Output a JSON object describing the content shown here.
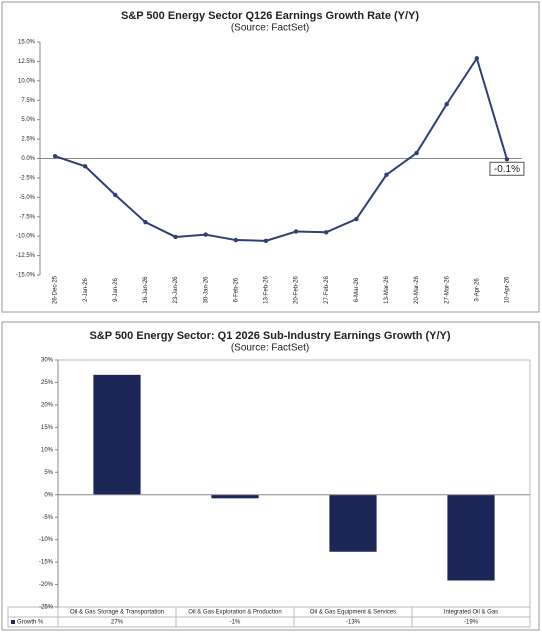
{
  "chart_data": [
    {
      "type": "line",
      "title": "S&P 500 Energy Sector Q126 Earnings Growth Rate (Y/Y)",
      "subtitle": "(Source: FactSet)",
      "categories": [
        "26-Dec-25",
        "2-Jan-26",
        "9-Jan-26",
        "16-Jan-26",
        "23-Jan-26",
        "30-Jan-26",
        "6-Feb-26",
        "13-Feb-26",
        "20-Feb-26",
        "27-Feb-26",
        "6-Mar-26",
        "13-Mar-26",
        "20-Mar-26",
        "27-Mar-26",
        "3-Apr-26",
        "10-Apr-26"
      ],
      "values": [
        0.3,
        -1.0,
        -4.7,
        -8.2,
        -10.1,
        -9.8,
        -10.5,
        -10.6,
        -9.4,
        -9.5,
        -7.8,
        -2.1,
        0.7,
        7.0,
        12.9,
        -0.1
      ],
      "value_labels": [
        null,
        null,
        null,
        null,
        null,
        null,
        null,
        null,
        null,
        null,
        null,
        null,
        null,
        null,
        null,
        "-0.1%"
      ],
      "color": "#2e3f7a",
      "ylim": [
        -15,
        15
      ],
      "yticks": [
        {
          "value": -15,
          "label": "-15.0%"
        },
        {
          "value": -12.5,
          "label": "-12.5%"
        },
        {
          "value": -10,
          "label": "-10.0%"
        },
        {
          "value": -7.5,
          "label": "-7.5%"
        },
        {
          "value": -5,
          "label": "-5.0%"
        },
        {
          "value": -2.5,
          "label": "-2.5%"
        },
        {
          "value": 0,
          "label": "0.0%"
        },
        {
          "value": 2.5,
          "label": "2.5%"
        },
        {
          "value": 5,
          "label": "5.0%"
        },
        {
          "value": 7.5,
          "label": "7.5%"
        },
        {
          "value": 10,
          "label": "10.0%"
        },
        {
          "value": 12.5,
          "label": "12.5%"
        },
        {
          "value": 15,
          "label": "15.0%"
        }
      ],
      "grid": false
    },
    {
      "type": "bar",
      "title": "S&P 500 Energy Sector: Q1 2026 Sub-Industry Earnings Growth (Y/Y)",
      "subtitle": "(Source: FactSet)",
      "categories": [
        "Oil & Gas Storage & Transportation",
        "Oil & Gas Exploration & Production",
        "Oil & Gas Equipment & Services",
        "Integrated Oil & Gas"
      ],
      "series": [
        {
          "name": "Growth %",
          "color": "#1c2657",
          "values": [
            26.7,
            -0.8,
            -12.7,
            -19.1
          ],
          "value_labels": [
            "27%",
            "-1%",
            "-13%",
            "-19%"
          ]
        }
      ],
      "ylim": [
        -25,
        30
      ],
      "yticks": [
        {
          "value": -25,
          "label": "-25%"
        },
        {
          "value": -20,
          "label": "-20%"
        },
        {
          "value": -15,
          "label": "-15%"
        },
        {
          "value": -10,
          "label": "-10%"
        },
        {
          "value": -5,
          "label": "-5%"
        },
        {
          "value": 0,
          "label": "0%"
        },
        {
          "value": 5,
          "label": "5%"
        },
        {
          "value": 10,
          "label": "10%"
        },
        {
          "value": 15,
          "label": "15%"
        },
        {
          "value": 20,
          "label": "20%"
        },
        {
          "value": 25,
          "label": "25%"
        },
        {
          "value": 30,
          "label": "30%"
        }
      ],
      "grid": false
    }
  ]
}
